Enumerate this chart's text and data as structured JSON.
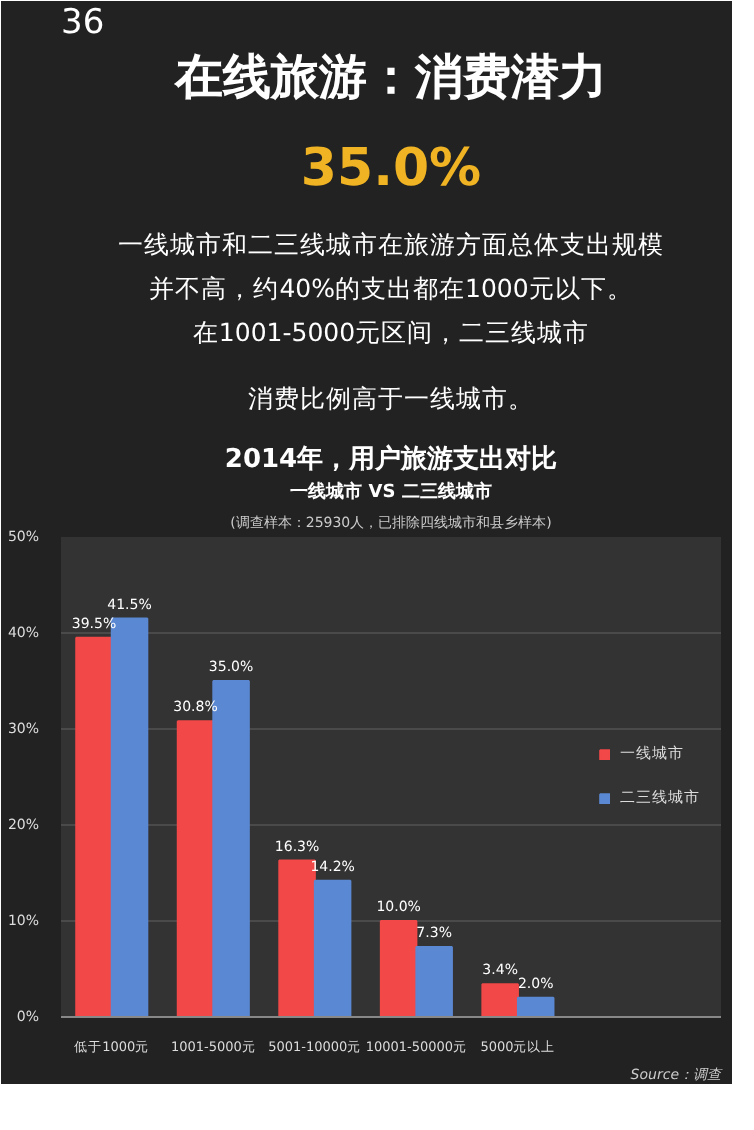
{
  "chart_data": {
    "type": "bar",
    "title": "2014年，用户旅游支出对比",
    "subtitle": "一线城市 VS 二三线城市",
    "annotations": [
      "36",
      "在线旅游：消费潜力",
      "35.0%",
      "一线城市和二三线城市在旅游方面总体支出规模",
      "并不高，约40%的支出都在1000元以下。",
      "在1001-5000元区间，二三线城市",
      "消费比例高于一线城市。",
      "(调查样本：25930人，已排除四线城市和县乡样本)",
      "Source：调查"
    ],
    "categories": [
      "低于1000元",
      "1001-5000元",
      "5001-10000元",
      "10001-50000元",
      "5000元以上"
    ],
    "series": [
      {
        "name": "一线城市",
        "color": "#f24848",
        "values": [
          39.5,
          30.8,
          16.3,
          10.0,
          3.4
        ],
        "value_labels": [
          "39.5%",
          "30.8%",
          "16.3%",
          "10.0%",
          "3.4%"
        ]
      },
      {
        "name": "二三线城市",
        "color": "#5b88d2",
        "values": [
          41.5,
          35.0,
          14.2,
          7.3,
          2.0
        ],
        "value_labels": [
          "41.5%",
          "35.0%",
          "14.2%",
          "7.3%",
          "2.0%"
        ]
      }
    ],
    "ylim": [
      0,
      50
    ],
    "yticks": [
      {
        "value": 0,
        "label": "0%"
      },
      {
        "value": 10,
        "label": "10%"
      },
      {
        "value": 20,
        "label": "20%"
      },
      {
        "value": 30,
        "label": "30%"
      },
      {
        "value": 40,
        "label": "40%"
      },
      {
        "value": 50,
        "label": "50%"
      }
    ],
    "grid": "y",
    "legend": "right"
  }
}
